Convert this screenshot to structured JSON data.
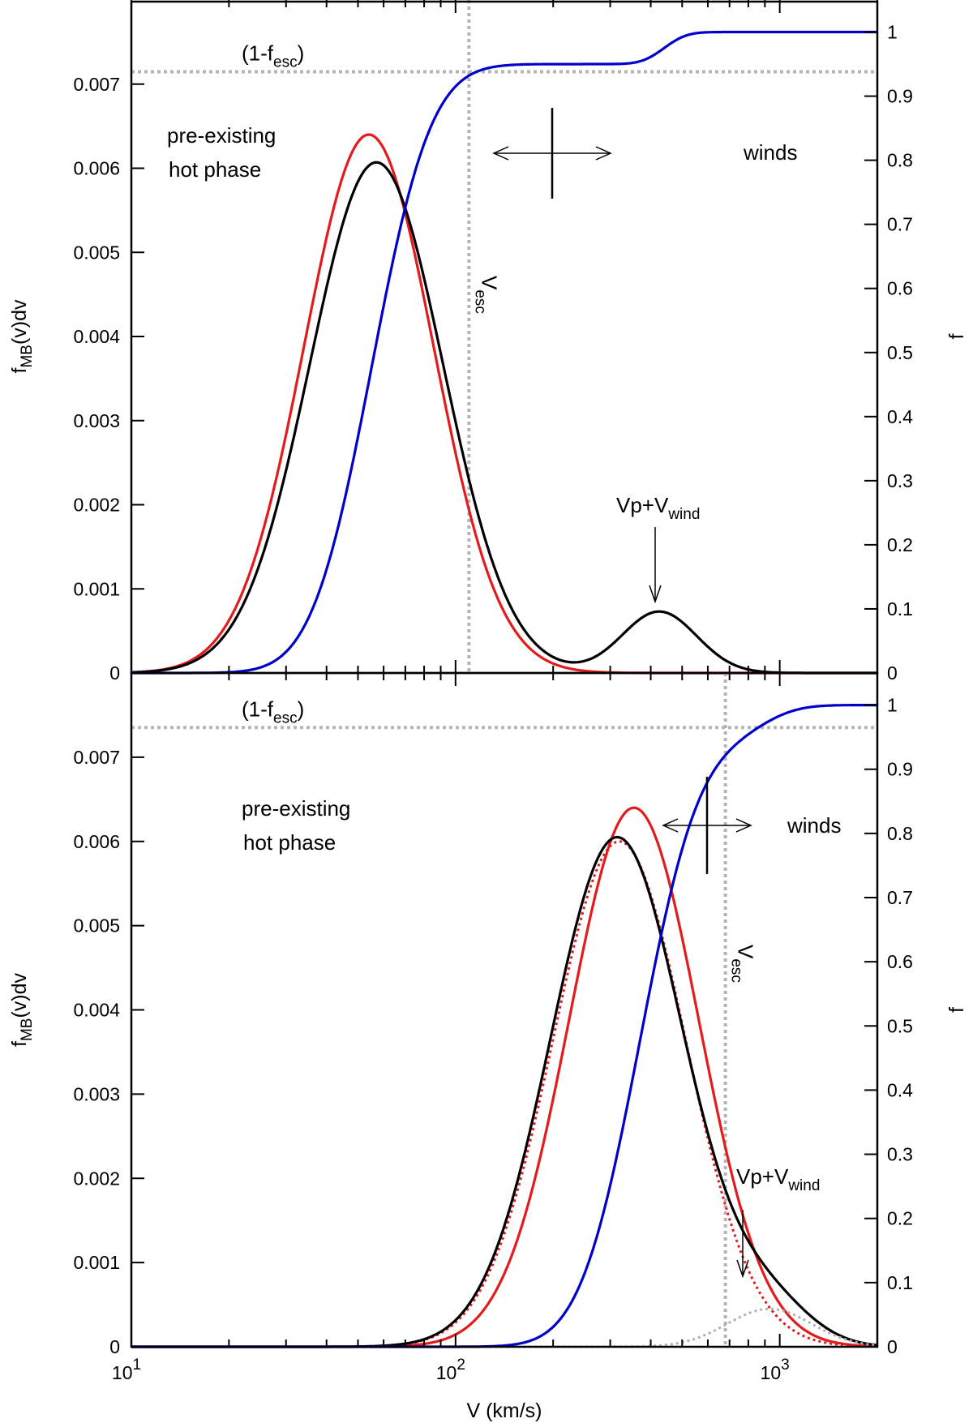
{
  "chart_data": [
    {
      "type": "line",
      "panel": "top",
      "xscale": "log",
      "xlim": [
        10,
        2000
      ],
      "ylim_left": [
        0,
        0.008
      ],
      "ylim_right": [
        0,
        1.05
      ],
      "ylabel_left": {
        "main": "f",
        "sub": "MB",
        "tail": "(v)dv"
      },
      "ylabel_right": "f",
      "left_ticks": [
        "0",
        "0.001",
        "0.002",
        "0.003",
        "0.004",
        "0.005",
        "0.006",
        "0.007"
      ],
      "right_ticks": [
        "0",
        "0.1",
        "0.2",
        "0.3",
        "0.4",
        "0.5",
        "0.6",
        "0.7",
        "0.8",
        "0.9",
        "1"
      ],
      "v_esc": 110,
      "escape_fraction_line": 0.938,
      "series": [
        {
          "name": "red",
          "color": "#e41a1c",
          "style": "solid",
          "axis": "left",
          "peak_x": 54,
          "peak_y": 0.0064,
          "width": 0.2
        },
        {
          "name": "black",
          "color": "#000000",
          "style": "solid",
          "axis": "left",
          "components": [
            {
              "peak_x": 57,
              "peak_y": 0.00607,
              "width": 0.205
            },
            {
              "peak_x": 425,
              "peak_y": 0.00073,
              "width": 0.115
            }
          ]
        },
        {
          "name": "blue",
          "color": "#0000cc",
          "style": "solid",
          "axis": "right",
          "steps": [
            {
              "center": 55,
              "height": 0.95,
              "width": 0.145
            },
            {
              "center": 440,
              "height": 0.05,
              "width": 0.055
            }
          ]
        }
      ],
      "annotations": {
        "fesc_label": {
          "pre": "(1-f",
          "sub": "esc",
          "post": ")"
        },
        "vesc_label": {
          "main": "V",
          "sub": "esc"
        },
        "region_left": [
          "pre-existing",
          "hot phase"
        ],
        "region_right": "winds",
        "peak_label": {
          "main": "Vp+V",
          "sub": "wind"
        }
      }
    },
    {
      "type": "line",
      "panel": "bottom",
      "xscale": "log",
      "xlim": [
        10,
        2000
      ],
      "ylim_left": [
        0,
        0.008
      ],
      "ylim_right": [
        0,
        1.05
      ],
      "xlabel": "V (km/s)",
      "x_ticks": [
        {
          "base": "10",
          "exp": "1"
        },
        {
          "base": "10",
          "exp": "2"
        },
        {
          "base": "10",
          "exp": "3"
        }
      ],
      "ylabel_left": {
        "main": "f",
        "sub": "MB",
        "tail": "(v)dv"
      },
      "ylabel_right": "f",
      "left_ticks": [
        "0",
        "0.001",
        "0.002",
        "0.003",
        "0.004",
        "0.005",
        "0.006",
        "0.007"
      ],
      "right_ticks": [
        "0",
        "0.1",
        "0.2",
        "0.3",
        "0.4",
        "0.5",
        "0.6",
        "0.7",
        "0.8",
        "0.9",
        "1"
      ],
      "v_esc": 680,
      "escape_fraction_line": 0.965,
      "series": [
        {
          "name": "red",
          "color": "#e41a1c",
          "style": "solid",
          "axis": "left",
          "peak_x": 355,
          "peak_y": 0.0064,
          "width": 0.2
        },
        {
          "name": "red-truncated",
          "color": "#e41a1c",
          "style": "dotted",
          "axis": "left",
          "peak_x": 320,
          "peak_y": 0.006,
          "width": 0.205
        },
        {
          "name": "black",
          "color": "#000000",
          "style": "solid",
          "axis": "left",
          "components": [
            {
              "peak_x": 315,
              "peak_y": 0.00605,
              "width": 0.205
            },
            {
              "peak_x": 930,
              "peak_y": 0.00045,
              "width": 0.13
            }
          ]
        },
        {
          "name": "grey-wind",
          "color": "#b0b0b0",
          "style": "dotted",
          "axis": "left",
          "peak_x": 930,
          "peak_y": 0.00045,
          "width": 0.13
        },
        {
          "name": "blue",
          "color": "#0000cc",
          "style": "solid",
          "axis": "right",
          "steps": [
            {
              "center": 370,
              "height": 0.95,
              "width": 0.145
            },
            {
              "center": 900,
              "height": 0.05,
              "width": 0.09
            }
          ]
        }
      ],
      "annotations": {
        "fesc_label": {
          "pre": "(1-f",
          "sub": "esc",
          "post": ")"
        },
        "vesc_label": {
          "main": "V",
          "sub": "esc"
        },
        "region_left": [
          "pre-existing",
          "hot phase"
        ],
        "region_right": "winds",
        "peak_label": {
          "main": "Vp+V",
          "sub": "wind"
        }
      }
    }
  ]
}
